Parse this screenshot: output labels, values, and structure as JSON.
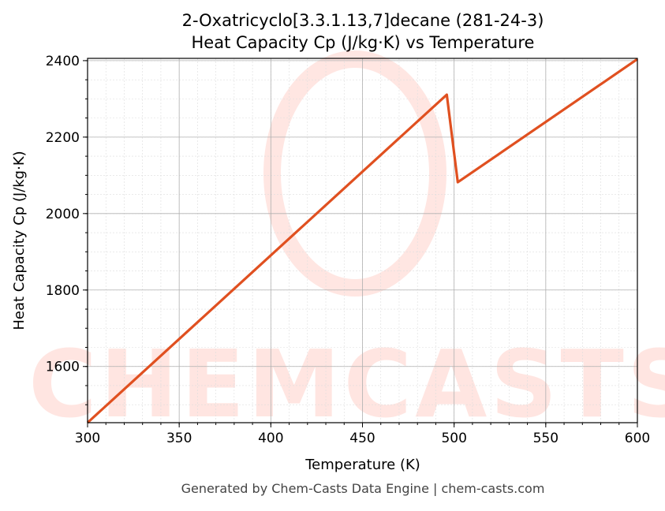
{
  "chart_data": {
    "type": "line",
    "title_line1": "2-Oxatricyclo[3.3.1.13,7]decane (281-24-3)",
    "title_line2": "Heat Capacity Cp (J/kg·K) vs Temperature",
    "xlabel": "Temperature (K)",
    "ylabel": "Heat Capacity Cp (J/kg·K)",
    "xlim": [
      300,
      600
    ],
    "ylim": [
      1453,
      2406
    ],
    "xticks": [
      300,
      350,
      400,
      450,
      500,
      550,
      600
    ],
    "yticks": [
      1600,
      1800,
      2000,
      2200,
      2400
    ],
    "x_minor_step": 10,
    "y_minor_step": 50,
    "grid": true,
    "series": [
      {
        "name": "Cp",
        "color": "#e05020",
        "x": [
          300,
          496,
          502,
          600
        ],
        "y": [
          1453,
          2311,
          2082,
          2404
        ]
      }
    ]
  },
  "watermark": "CHEMCASTS",
  "footer": "Generated by Chem-Casts Data Engine | chem-casts.com"
}
